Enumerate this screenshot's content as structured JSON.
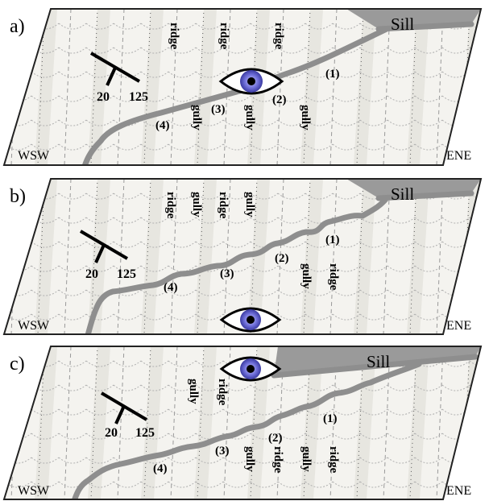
{
  "colors": {
    "frame": "#222222",
    "stripe_light": "#f4f3ef",
    "stripe_dark": "#dcdad4",
    "sill_fill": "#9a9a9a",
    "contact_line": "#8e8e8e",
    "eye_iris": "#6e6ed8",
    "eye_pupil": "#000000",
    "layer_marks": "#b0b0b0"
  },
  "panels": [
    {
      "label": "a)",
      "sill_label": "Sill",
      "left_corner": "WSW",
      "right_corner": "ENE",
      "strike_dip": {
        "dip": "20",
        "strike": "125"
      },
      "words": [
        "ridge",
        "ridge",
        "ridge",
        "gully",
        "gully",
        "gully"
      ],
      "numbers": [
        "(1)",
        "(2)",
        "(3)",
        "(4)"
      ],
      "eye_icon": "eye-icon"
    },
    {
      "label": "b)",
      "sill_label": "Sill",
      "left_corner": "WSW",
      "right_corner": "ENE",
      "strike_dip": {
        "dip": "20",
        "strike": "125"
      },
      "words": [
        "ridge",
        "gully",
        "ridge",
        "gully",
        "gully",
        "ridge"
      ],
      "numbers": [
        "(1)",
        "(2)",
        "(3)",
        "(4)"
      ],
      "eye_icon": "eye-icon"
    },
    {
      "label": "c)",
      "sill_label": "Sill",
      "left_corner": "WSW",
      "right_corner": "ENE",
      "strike_dip": {
        "dip": "20",
        "strike": "125"
      },
      "words": [
        "gully",
        "ridge",
        "gully",
        "ridge",
        "gully",
        "ridge"
      ],
      "numbers": [
        "(1)",
        "(2)",
        "(3)",
        "(4)"
      ],
      "eye_icon": "eye-icon"
    }
  ]
}
